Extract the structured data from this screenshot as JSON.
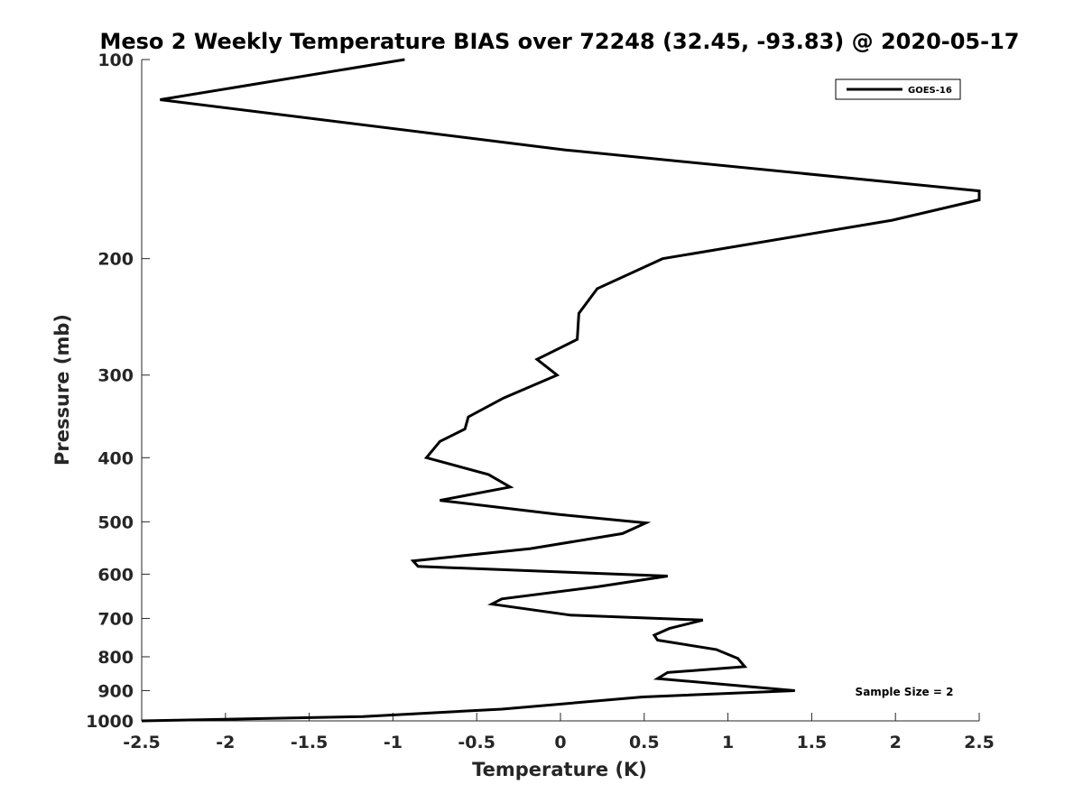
{
  "chart_data": {
    "type": "line",
    "title": "Meso 2 Weekly Temperature BIAS over 72248 (32.45, -93.83) @ 2020-05-17",
    "xlabel": "Temperature (K)",
    "ylabel": "Pressure (mb)",
    "xlim": [
      -2.5,
      2.5
    ],
    "ylim": [
      100,
      1000
    ],
    "y_scale": "log",
    "y_reversed": true,
    "x_ticks": [
      -2.5,
      -2,
      -1.5,
      -1,
      -0.5,
      0,
      0.5,
      1,
      1.5,
      2,
      2.5
    ],
    "x_tick_labels": [
      "-2.5",
      "-2",
      "-1.5",
      "-1",
      "-0.5",
      "0",
      "0.5",
      "1",
      "1.5",
      "2",
      "2.5"
    ],
    "y_ticks": [
      100,
      200,
      300,
      400,
      500,
      600,
      700,
      800,
      900,
      1000
    ],
    "y_tick_labels": [
      "100",
      "200",
      "300",
      "400",
      "500",
      "600",
      "700",
      "800",
      "900",
      "1000"
    ],
    "legend_position": "top-right",
    "grid": false,
    "annotation": "Sample Size = 2",
    "series": [
      {
        "name": "GOES-16",
        "color": "#000000",
        "points": [
          [
            -0.93,
            100
          ],
          [
            -2.39,
            115
          ],
          [
            0.03,
            137
          ],
          [
            2.5,
            158
          ],
          [
            2.5,
            163
          ],
          [
            1.98,
            175
          ],
          [
            0.61,
            200
          ],
          [
            0.22,
            222
          ],
          [
            0.11,
            242
          ],
          [
            0.1,
            265
          ],
          [
            -0.14,
            284
          ],
          [
            -0.02,
            300
          ],
          [
            -0.34,
            325
          ],
          [
            -0.55,
            347
          ],
          [
            -0.57,
            362
          ],
          [
            -0.72,
            378
          ],
          [
            -0.8,
            400
          ],
          [
            -0.43,
            424
          ],
          [
            -0.3,
            443
          ],
          [
            -0.72,
            464
          ],
          [
            -0.02,
            487
          ],
          [
            0.51,
            502
          ],
          [
            0.37,
            521
          ],
          [
            -0.18,
            549
          ],
          [
            -0.88,
            573
          ],
          [
            -0.85,
            584
          ],
          [
            0.64,
            604
          ],
          [
            0.22,
            627
          ],
          [
            -0.35,
            654
          ],
          [
            -0.41,
            666
          ],
          [
            0.06,
            692
          ],
          [
            0.85,
            704
          ],
          [
            0.65,
            725
          ],
          [
            0.56,
            742
          ],
          [
            0.58,
            755
          ],
          [
            0.93,
            780
          ],
          [
            1.06,
            805
          ],
          [
            1.1,
            828
          ],
          [
            0.64,
            845
          ],
          [
            0.58,
            863
          ],
          [
            1.4,
            900
          ],
          [
            0.49,
            920
          ],
          [
            -0.35,
            960
          ],
          [
            -1.18,
            985
          ],
          [
            -2.5,
            1000
          ]
        ]
      }
    ]
  }
}
